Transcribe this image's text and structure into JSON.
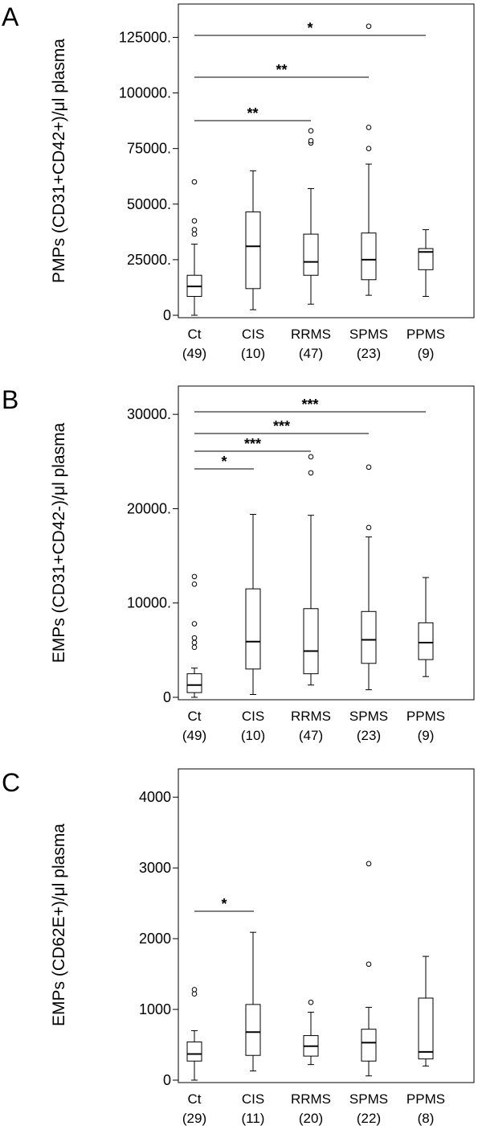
{
  "chart_data": [
    {
      "type": "box",
      "panel_label": "A",
      "ylabel": "PMPs (CD31+CD42+)/μl plasma",
      "ylim": [
        0,
        140000
      ],
      "yticks": [
        0,
        25000,
        50000,
        75000,
        100000,
        125000
      ],
      "ytick_labels": [
        "0",
        "25000.",
        "50000.",
        "75000.",
        "100000.",
        "125000."
      ],
      "categories": [
        "Ct",
        "CIS",
        "RRMS",
        "SPMS",
        "PPMS"
      ],
      "counts": [
        "(49)",
        "(10)",
        "(47)",
        "(23)",
        "(9)"
      ],
      "boxes": [
        {
          "min": 0,
          "q1": 8500,
          "median": 13000,
          "q3": 18000,
          "max": 32000,
          "outliers": [
            36500,
            38500,
            42500,
            60000
          ]
        },
        {
          "min": 2500,
          "q1": 12000,
          "median": 31000,
          "q3": 46500,
          "max": 65000,
          "outliers": []
        },
        {
          "min": 5000,
          "q1": 18000,
          "median": 24000,
          "q3": 36500,
          "max": 57000,
          "outliers": [
            77500,
            78500,
            83000
          ]
        },
        {
          "min": 9000,
          "q1": 16000,
          "median": 25000,
          "q3": 37000,
          "max": 68000,
          "outliers": [
            75000,
            84500,
            130000
          ]
        },
        {
          "min": 8500,
          "q1": 20500,
          "median": 28500,
          "q3": 30000,
          "max": 38500,
          "outliers": []
        }
      ],
      "significance": [
        {
          "from": 0,
          "to": 1,
          "label": "",
          "show": false
        },
        {
          "from": 0,
          "to": 2,
          "label": "**",
          "show": true
        },
        {
          "from": 0,
          "to": 3,
          "label": "**",
          "show": true
        },
        {
          "from": 0,
          "to": 4,
          "label": "*",
          "show": true
        }
      ]
    },
    {
      "type": "box",
      "panel_label": "B",
      "ylabel": "EMPs (CD31+CD42-)/μl plasma",
      "ylim": [
        0,
        33000
      ],
      "yticks": [
        0,
        10000,
        20000,
        30000
      ],
      "ytick_labels": [
        "0",
        "10000.",
        "20000.",
        "30000."
      ],
      "categories": [
        "Ct",
        "CIS",
        "RRMS",
        "SPMS",
        "PPMS"
      ],
      "counts": [
        "(49)",
        "(10)",
        "(47)",
        "(23)",
        "(9)"
      ],
      "boxes": [
        {
          "min": 0,
          "q1": 500,
          "median": 1300,
          "q3": 2500,
          "max": 3100,
          "outliers": [
            5300,
            5800,
            6300,
            7800,
            12000,
            12800
          ]
        },
        {
          "min": 300,
          "q1": 3000,
          "median": 5900,
          "q3": 11500,
          "max": 19400,
          "outliers": []
        },
        {
          "min": 1300,
          "q1": 2500,
          "median": 4900,
          "q3": 9400,
          "max": 19300,
          "outliers": [
            23800,
            25500
          ]
        },
        {
          "min": 800,
          "q1": 3600,
          "median": 6100,
          "q3": 9100,
          "max": 17000,
          "outliers": [
            18000,
            24400
          ]
        },
        {
          "min": 2200,
          "q1": 4000,
          "median": 5800,
          "q3": 7900,
          "max": 12700,
          "outliers": []
        }
      ],
      "significance": [
        {
          "from": 0,
          "to": 1,
          "label": "*",
          "show": true
        },
        {
          "from": 0,
          "to": 2,
          "label": "***",
          "show": true
        },
        {
          "from": 0,
          "to": 3,
          "label": "***",
          "show": true
        },
        {
          "from": 0,
          "to": 4,
          "label": "***",
          "show": true
        }
      ]
    },
    {
      "type": "box",
      "panel_label": "C",
      "ylabel": "EMPs (CD62E+)/μl plasma",
      "ylim": [
        0,
        4400
      ],
      "yticks": [
        0,
        1000,
        2000,
        3000,
        4000
      ],
      "ytick_labels": [
        "0",
        "1000",
        "2000",
        "3000",
        "4000"
      ],
      "categories": [
        "Ct",
        "CIS",
        "RRMS",
        "SPMS",
        "PPMS"
      ],
      "counts": [
        "(29)",
        "(11)",
        "(20)",
        "(22)",
        "(8)"
      ],
      "boxes": [
        {
          "min": 0,
          "q1": 270,
          "median": 370,
          "q3": 540,
          "max": 700,
          "outliers": [
            1220,
            1280
          ]
        },
        {
          "min": 130,
          "q1": 350,
          "median": 680,
          "q3": 1070,
          "max": 2090,
          "outliers": []
        },
        {
          "min": 220,
          "q1": 340,
          "median": 480,
          "q3": 630,
          "max": 960,
          "outliers": [
            1100
          ]
        },
        {
          "min": 60,
          "q1": 270,
          "median": 530,
          "q3": 720,
          "max": 1030,
          "outliers": [
            1640,
            3060
          ]
        },
        {
          "min": 200,
          "q1": 300,
          "median": 400,
          "q3": 1160,
          "max": 1750,
          "outliers": []
        }
      ],
      "significance": [
        {
          "from": 0,
          "to": 1,
          "label": "*",
          "show": true
        }
      ]
    }
  ]
}
